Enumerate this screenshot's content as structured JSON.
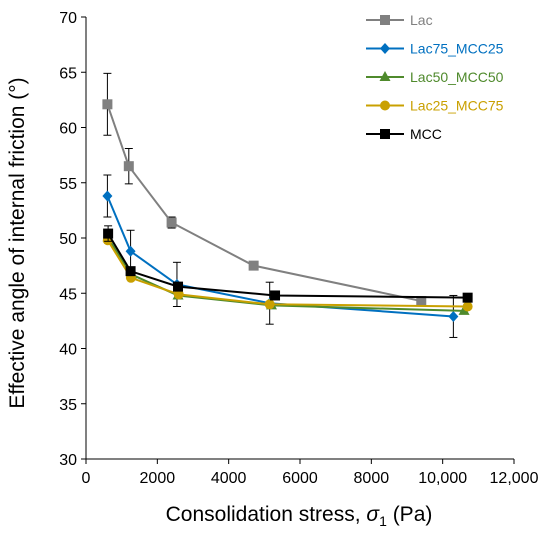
{
  "chart_data": {
    "type": "line",
    "xlabel_main": "Consolidation stress, ",
    "xlabel_symbol": "σ",
    "xlabel_sub": "1",
    "xlabel_unit": " (Pa)",
    "ylabel": "Effective angle of internal friction (°)",
    "xlim": [
      0,
      12000
    ],
    "ylim": [
      30,
      70
    ],
    "x_ticks": [
      0,
      2000,
      4000,
      6000,
      8000,
      10000,
      12000
    ],
    "x_tick_labels": [
      "0",
      "2000",
      "4000",
      "6000",
      "8000",
      "10,000",
      "12,000"
    ],
    "y_ticks": [
      30,
      35,
      40,
      45,
      50,
      55,
      60,
      65,
      70
    ],
    "y_tick_labels": [
      "30",
      "35",
      "40",
      "45",
      "50",
      "55",
      "60",
      "65",
      "70"
    ],
    "grid": false,
    "legend_position": "top-right",
    "series": [
      {
        "name": "Lac",
        "color": "#808080",
        "marker": "square",
        "x": [
          600,
          1200,
          2400,
          4700,
          9400
        ],
        "y": [
          62.1,
          56.5,
          51.4,
          47.5,
          44.3
        ],
        "err": [
          2.8,
          1.6,
          0.5,
          0,
          0
        ]
      },
      {
        "name": "Lac75_MCC25",
        "color": "#0070C0",
        "marker": "diamond",
        "x": [
          600,
          1250,
          2550,
          5150,
          10300
        ],
        "y": [
          53.8,
          48.8,
          45.8,
          44.1,
          42.9
        ],
        "err": [
          1.9,
          1.9,
          2.0,
          1.9,
          1.9
        ]
      },
      {
        "name": "Lac50_MCC50",
        "color": "#4F8A2C",
        "marker": "triangle",
        "x": [
          620,
          1270,
          2580,
          5200,
          10600
        ],
        "y": [
          50.0,
          46.7,
          44.8,
          43.9,
          43.4
        ],
        "err": [
          0,
          0,
          0,
          0,
          0
        ]
      },
      {
        "name": "Lac25_MCC75",
        "color": "#C9A000",
        "marker": "circle",
        "x": [
          610,
          1260,
          2600,
          5150,
          10700
        ],
        "y": [
          49.8,
          46.4,
          44.9,
          44.0,
          43.8
        ],
        "err": [
          0,
          0,
          0,
          0,
          0
        ]
      },
      {
        "name": "MCC",
        "color": "#000000",
        "marker": "square",
        "x": [
          620,
          1250,
          2580,
          5300,
          10700
        ],
        "y": [
          50.4,
          47.0,
          45.6,
          44.8,
          44.6
        ],
        "err": [
          0.7,
          0,
          0,
          0,
          0
        ]
      }
    ]
  }
}
